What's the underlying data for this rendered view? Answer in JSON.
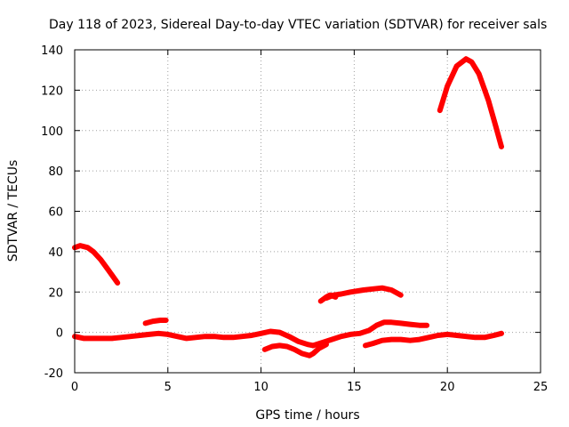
{
  "chart_data": {
    "type": "line",
    "title": "Day 118 of 2023, Sidereal Day-to-day VTEC variation (SDTVAR) for receiver sals",
    "xlabel": "GPS time / hours",
    "ylabel": "SDTVAR / TECUs",
    "xlim": [
      0,
      25
    ],
    "ylim": [
      -20,
      140
    ],
    "xticks": [
      0,
      5,
      10,
      15,
      20,
      25
    ],
    "yticks": [
      -20,
      0,
      20,
      40,
      60,
      80,
      100,
      120,
      140
    ],
    "grid": true,
    "series_color": "#ff0000",
    "series": [
      {
        "name": "seg-early-decline",
        "points": [
          [
            0.0,
            42
          ],
          [
            0.3,
            43
          ],
          [
            0.7,
            42
          ],
          [
            1.0,
            40
          ],
          [
            1.4,
            36
          ],
          [
            1.8,
            31
          ],
          [
            2.3,
            24.5
          ]
        ]
      },
      {
        "name": "seg-baseline-0-10",
        "points": [
          [
            0.0,
            -2
          ],
          [
            0.5,
            -3
          ],
          [
            1.0,
            -3
          ],
          [
            1.5,
            -3
          ],
          [
            2.0,
            -3
          ],
          [
            2.5,
            -2.5
          ],
          [
            3.0,
            -2
          ],
          [
            3.5,
            -1.5
          ],
          [
            4.0,
            -1
          ],
          [
            4.5,
            -0.5
          ],
          [
            5.0,
            -1
          ],
          [
            5.5,
            -2
          ],
          [
            6.0,
            -3
          ],
          [
            6.5,
            -2.5
          ],
          [
            7.0,
            -2
          ],
          [
            7.5,
            -2
          ],
          [
            8.0,
            -2.5
          ],
          [
            8.5,
            -2.5
          ],
          [
            9.0,
            -2
          ],
          [
            9.5,
            -1.5
          ],
          [
            10.0,
            -0.5
          ],
          [
            10.5,
            0.5
          ],
          [
            11.0,
            0
          ],
          [
            11.5,
            -2
          ],
          [
            12.0,
            -4.5
          ],
          [
            12.5,
            -6
          ],
          [
            12.8,
            -6.5
          ]
        ]
      },
      {
        "name": "seg-bump-4h",
        "points": [
          [
            3.8,
            4.5
          ],
          [
            4.2,
            5.5
          ],
          [
            4.6,
            6
          ],
          [
            4.9,
            6
          ]
        ]
      },
      {
        "name": "seg-dip-10-13",
        "points": [
          [
            10.2,
            -8.5
          ],
          [
            10.6,
            -7
          ],
          [
            11.0,
            -6.5
          ],
          [
            11.4,
            -7
          ],
          [
            11.8,
            -8.5
          ],
          [
            12.2,
            -10.5
          ],
          [
            12.6,
            -11.5
          ],
          [
            12.8,
            -10.5
          ],
          [
            13.1,
            -8
          ],
          [
            13.5,
            -6
          ]
        ]
      },
      {
        "name": "seg-rise-13-19",
        "points": [
          [
            12.8,
            -6.5
          ],
          [
            13.3,
            -5
          ],
          [
            13.8,
            -3.5
          ],
          [
            14.3,
            -2
          ],
          [
            14.8,
            -1
          ],
          [
            15.3,
            -0.5
          ],
          [
            15.8,
            1
          ],
          [
            16.2,
            3.5
          ],
          [
            16.6,
            5
          ],
          [
            17.0,
            5
          ],
          [
            17.5,
            4.5
          ],
          [
            18.0,
            4
          ],
          [
            18.5,
            3.5
          ],
          [
            18.9,
            3.5
          ]
        ]
      },
      {
        "name": "seg-mid-20s",
        "points": [
          [
            13.5,
            17
          ],
          [
            13.9,
            18.5
          ],
          [
            14.3,
            19
          ],
          [
            14.8,
            20
          ],
          [
            15.5,
            21
          ],
          [
            16.0,
            21.5
          ],
          [
            16.5,
            22
          ],
          [
            17.0,
            21
          ],
          [
            17.5,
            18.5
          ]
        ]
      },
      {
        "name": "seg-mid-15",
        "points": [
          [
            13.2,
            15.5
          ],
          [
            13.5,
            17.5
          ],
          [
            13.7,
            18.5
          ],
          [
            14.0,
            17.5
          ]
        ]
      },
      {
        "name": "seg-lower-16-23",
        "points": [
          [
            15.6,
            -6.5
          ],
          [
            16.0,
            -5.5
          ],
          [
            16.5,
            -4
          ],
          [
            17.0,
            -3.5
          ],
          [
            17.5,
            -3.5
          ],
          [
            18.0,
            -4
          ],
          [
            18.5,
            -3.5
          ],
          [
            19.0,
            -2.5
          ],
          [
            19.5,
            -1.5
          ],
          [
            20.0,
            -1
          ],
          [
            20.5,
            -1.5
          ],
          [
            21.0,
            -2
          ],
          [
            21.5,
            -2.5
          ],
          [
            22.0,
            -2.5
          ],
          [
            22.5,
            -1.5
          ],
          [
            22.9,
            -0.5
          ]
        ]
      },
      {
        "name": "seg-late-peak",
        "points": [
          [
            19.6,
            110
          ],
          [
            20.0,
            122
          ],
          [
            20.5,
            132
          ],
          [
            21.0,
            135.5
          ],
          [
            21.3,
            134
          ],
          [
            21.7,
            128
          ],
          [
            22.2,
            115
          ],
          [
            22.6,
            102
          ],
          [
            22.9,
            92
          ]
        ]
      }
    ]
  }
}
